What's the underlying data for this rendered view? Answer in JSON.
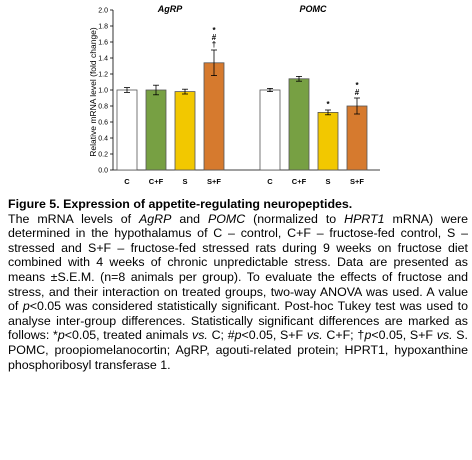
{
  "chart_data": {
    "type": "bar",
    "ylabel": "Relative mRNA level (fold change)",
    "ylim": [
      0,
      2.0
    ],
    "ytick_step": 0.2,
    "yticks": [
      "0.0",
      "0.2",
      "0.4",
      "0.6",
      "0.8",
      "1.0",
      "1.2",
      "1.4",
      "1.6",
      "1.8",
      "2.0"
    ],
    "grid": false,
    "groups": [
      {
        "label": "AgRP",
        "bars": [
          {
            "category": "C",
            "value": 1.0,
            "error": 0.03,
            "color": "#ffffff",
            "marks": []
          },
          {
            "category": "C+F",
            "value": 1.0,
            "error": 0.06,
            "color": "#77a043",
            "marks": []
          },
          {
            "category": "S",
            "value": 0.98,
            "error": 0.03,
            "color": "#f2c800",
            "marks": []
          },
          {
            "category": "S+F",
            "value": 1.34,
            "error": 0.16,
            "color": "#d67a2e",
            "marks": [
              "*",
              "#",
              "†"
            ]
          }
        ]
      },
      {
        "label": "POMC",
        "bars": [
          {
            "category": "C",
            "value": 1.0,
            "error": 0.02,
            "color": "#ffffff",
            "marks": []
          },
          {
            "category": "C+F",
            "value": 1.14,
            "error": 0.03,
            "color": "#77a043",
            "marks": []
          },
          {
            "category": "S",
            "value": 0.72,
            "error": 0.03,
            "color": "#f2c800",
            "marks": [
              "*"
            ]
          },
          {
            "category": "S+F",
            "value": 0.8,
            "error": 0.1,
            "color": "#d67a2e",
            "marks": [
              "*",
              "#"
            ]
          }
        ]
      }
    ]
  },
  "caption": {
    "title": "Figure 5. Expression of appetite-regulating neuropeptides.",
    "body": [
      {
        "t": "The mRNA levels of "
      },
      {
        "t": "AgRP",
        "i": true
      },
      {
        "t": " and "
      },
      {
        "t": "POMC",
        "i": true
      },
      {
        "t": " (normalized to "
      },
      {
        "t": "HPRT1",
        "i": true
      },
      {
        "t": " mRNA) were determined in the hypothalamus of C – control, C+F – fructose-fed control, S – stressed and S+F – fructose-fed stressed rats during 9 weeks on fructose diet combined with 4 weeks of chronic unpredictable stress. Data are presented as means ±S.E.M. (n=8 animals per group). To evaluate the effects of fructose and stress, and their interaction on treated groups, two-way ANOVA was used. A value of "
      },
      {
        "t": "p",
        "i": true
      },
      {
        "t": "<0.05 was considered statistically significant. Post-hoc Tukey test was used to analyse inter-group differences. Statistically significant differences are marked as follows: *"
      },
      {
        "t": "p",
        "i": true
      },
      {
        "t": "<0.05, treated animals "
      },
      {
        "t": "vs.",
        "i": true
      },
      {
        "t": " C; #"
      },
      {
        "t": "p",
        "i": true
      },
      {
        "t": "<0.05, S+F "
      },
      {
        "t": "vs.",
        "i": true
      },
      {
        "t": " C+F; †"
      },
      {
        "t": "p",
        "i": true
      },
      {
        "t": "<0.05, S+F "
      },
      {
        "t": "vs.",
        "i": true
      },
      {
        "t": " S. POMC, proopiomelanocortin; AgRP, agouti-related protein; HPRT1, hypoxanthine phosphoribosyl transferase 1."
      }
    ]
  }
}
